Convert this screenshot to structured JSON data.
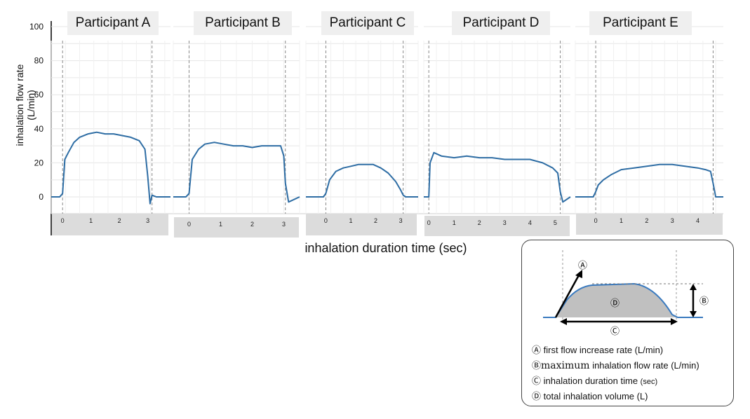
{
  "chart_data": {
    "type": "line",
    "ylabel": "inhalation flow rate (L/min)",
    "xlabel": "inhalation duration time (sec)",
    "yticks": [
      0,
      20,
      40,
      60,
      80,
      100
    ],
    "ylim": [
      -8,
      100
    ],
    "grid": true,
    "line_color": "#2e6da4",
    "panels": [
      {
        "name": "Participant A",
        "xticks": [
          0,
          1,
          2,
          3
        ],
        "xlim": [
          -0.4,
          3.8
        ],
        "series": [
          {
            "x": [
              -0.4,
              -0.1,
              0,
              0.08,
              0.2,
              0.4,
              0.6,
              0.9,
              1.2,
              1.5,
              1.8,
              2.1,
              2.4,
              2.7,
              2.9,
              3.0,
              3.08,
              3.15,
              3.3,
              3.8
            ],
            "y": [
              0,
              0,
              2,
              22,
              26,
              32,
              35,
              37,
              38,
              37,
              37,
              36,
              35,
              33,
              28,
              12,
              -4,
              1,
              0,
              0
            ]
          }
        ]
      },
      {
        "name": "Participant B",
        "xticks": [
          0,
          1,
          2,
          3
        ],
        "xlim": [
          -0.5,
          3.5
        ],
        "series": [
          {
            "x": [
              -0.5,
              -0.1,
              0,
              0.1,
              0.3,
              0.5,
              0.8,
              1.1,
              1.4,
              1.7,
              2.0,
              2.3,
              2.6,
              2.9,
              3.0,
              3.05,
              3.15,
              3.5
            ],
            "y": [
              0,
              0,
              2,
              22,
              28,
              31,
              32,
              31,
              30,
              30,
              29,
              30,
              30,
              30,
              24,
              8,
              -3,
              0
            ]
          }
        ]
      },
      {
        "name": "Participant C",
        "xticks": [
          0,
          1,
          2,
          3
        ],
        "xlim": [
          -0.8,
          3.7
        ],
        "series": [
          {
            "x": [
              -0.8,
              -0.1,
              0,
              0.15,
              0.4,
              0.7,
              1.0,
              1.3,
              1.6,
              1.9,
              2.2,
              2.5,
              2.8,
              3.0,
              3.1,
              3.2,
              3.7
            ],
            "y": [
              0,
              0,
              2,
              10,
              15,
              17,
              18,
              19,
              19,
              19,
              17,
              14,
              9,
              4,
              1,
              0,
              0
            ]
          }
        ]
      },
      {
        "name": "Participant D",
        "xticks": [
          0,
          1,
          2,
          3,
          4,
          5
        ],
        "xlim": [
          -0.2,
          5.6
        ],
        "series": [
          {
            "x": [
              -0.2,
              0,
              0.05,
              0.2,
              0.5,
              1.0,
              1.5,
              2.0,
              2.5,
              3.0,
              3.5,
              4.0,
              4.5,
              4.9,
              5.1,
              5.2,
              5.3,
              5.6
            ],
            "y": [
              0,
              0,
              20,
              26,
              24,
              23,
              24,
              23,
              23,
              22,
              22,
              22,
              20,
              17,
              14,
              3,
              -3,
              0
            ]
          }
        ]
      },
      {
        "name": "Participant E",
        "xticks": [
          0,
          1,
          2,
          3,
          4
        ],
        "xlim": [
          -0.8,
          5.0
        ],
        "series": [
          {
            "x": [
              -0.8,
              -0.1,
              0,
              0.1,
              0.3,
              0.6,
              1.0,
              1.5,
              2.0,
              2.5,
              3.0,
              3.5,
              4.0,
              4.3,
              4.5,
              4.6,
              4.7,
              5.0
            ],
            "y": [
              0,
              0,
              3,
              7,
              10,
              13,
              16,
              17,
              18,
              19,
              19,
              18,
              17,
              16,
              15,
              8,
              0,
              0
            ]
          }
        ]
      }
    ]
  },
  "axis_label": "inhalation flow rate (L/min)",
  "x_title": "inhalation duration time (sec)",
  "legend": {
    "marker_a": "Ⓐ",
    "marker_b": "Ⓑ",
    "marker_c": "Ⓒ",
    "marker_d": "Ⓓ",
    "item_a": "first flow increase rate (L/min)",
    "item_b_1": "maximum",
    "item_b_2": " inhalation flow rate (L/min)",
    "item_c_1": "inhalation duration time ",
    "item_c_2": "(sec)",
    "item_d": "total inhalation volume (L)"
  }
}
